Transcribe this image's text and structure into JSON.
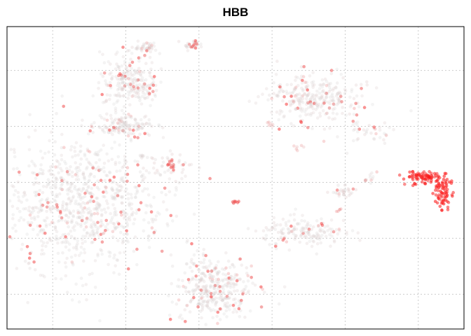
{
  "chart_data": {
    "type": "scatter",
    "title": "HBB",
    "xlabel": "",
    "ylabel": "",
    "grid": true,
    "legend": "none",
    "axes_tick_labels": "none",
    "xlim": [
      0,
      100
    ],
    "ylim": [
      0,
      100
    ],
    "colors": {
      "low": "#d8d8d8",
      "high": "#ff0000",
      "grid": "#cccccc",
      "border": "#000000"
    },
    "clusters": [
      {
        "x": 16.0,
        "y": 41.0,
        "sx": 9.0,
        "sy": 11.0,
        "n": 900,
        "level": 0.06
      },
      {
        "x": 25.5,
        "y": 67.0,
        "sx": 3.0,
        "sy": 1.6,
        "n": 140,
        "level": 0.07
      },
      {
        "x": 27.0,
        "y": 82.0,
        "sx": 3.2,
        "sy": 4.5,
        "n": 240,
        "level": 0.08
      },
      {
        "x": 30.5,
        "y": 93.0,
        "sx": 1.3,
        "sy": 1.0,
        "n": 40,
        "level": 0.1
      },
      {
        "x": 40.5,
        "y": 94.0,
        "sx": 1.2,
        "sy": 0.7,
        "n": 30,
        "level": 0.12
      },
      {
        "x": 35.0,
        "y": 53.5,
        "sx": 2.6,
        "sy": 2.5,
        "n": 40,
        "level": 0.14
      },
      {
        "x": 36.3,
        "y": 53.5,
        "sx": 0.6,
        "sy": 1.0,
        "n": 12,
        "level": 0.6
      },
      {
        "x": 45.0,
        "y": 13.5,
        "sx": 4.4,
        "sy": 5.2,
        "n": 360,
        "level": 0.07
      },
      {
        "x": 50.0,
        "y": 42.0,
        "sx": 0.4,
        "sy": 0.4,
        "n": 8,
        "level": 0.55
      },
      {
        "x": 65.0,
        "y": 32.0,
        "sx": 4.5,
        "sy": 2.3,
        "n": 160,
        "level": 0.08
      },
      {
        "x": 67.0,
        "y": 76.0,
        "sx": 5.0,
        "sy": 4.2,
        "n": 300,
        "level": 0.09
      },
      {
        "x": 79.0,
        "y": 65.0,
        "sx": 3.5,
        "sy": 2.5,
        "n": 40,
        "level": 0.1
      },
      {
        "x": 73.8,
        "y": 45.5,
        "sx": 1.3,
        "sy": 0.8,
        "n": 30,
        "level": 0.12
      },
      {
        "x": 72.5,
        "y": 39.0,
        "sx": 0.4,
        "sy": 0.4,
        "n": 5,
        "level": 0.4
      },
      {
        "x": 64.0,
        "y": 60.0,
        "sx": 0.5,
        "sy": 0.4,
        "n": 6,
        "level": 0.3
      },
      {
        "x": 57.5,
        "y": 67.5,
        "sx": 0.5,
        "sy": 0.4,
        "n": 6,
        "level": 0.3
      },
      {
        "x": 79.0,
        "y": 50.0,
        "sx": 1.0,
        "sy": 0.8,
        "n": 12,
        "level": 0.15
      },
      {
        "x": 91.5,
        "y": 50.0,
        "sx": 2.3,
        "sy": 1.2,
        "n": 80,
        "level": 0.85
      },
      {
        "x": 95.5,
        "y": 45.0,
        "sx": 1.0,
        "sy": 2.6,
        "n": 70,
        "level": 0.9
      }
    ]
  }
}
